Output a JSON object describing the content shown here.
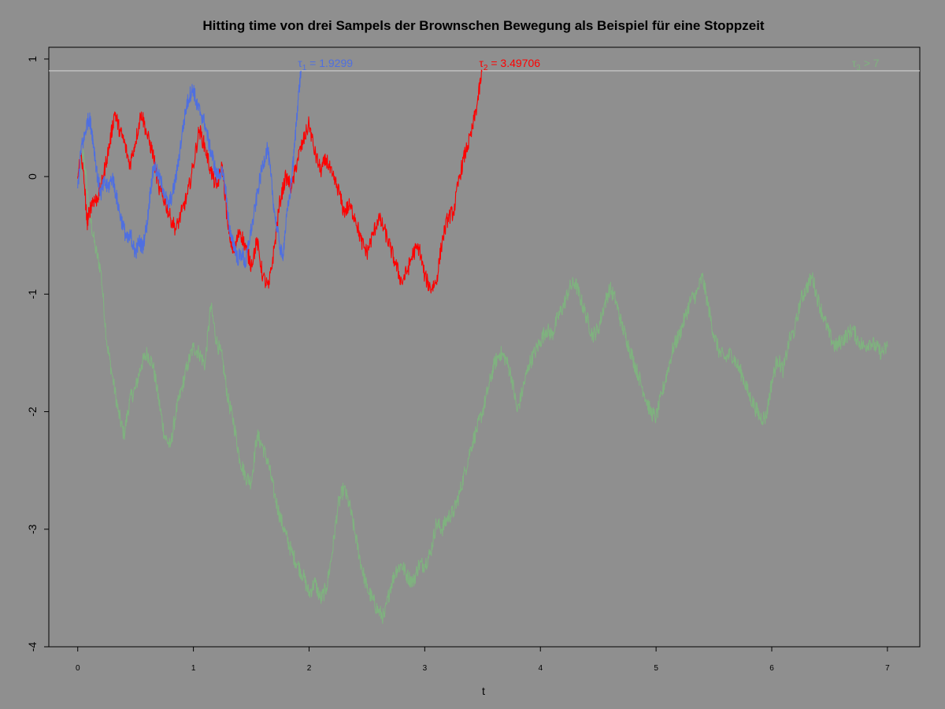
{
  "chart_data": {
    "type": "line",
    "title": "Hitting time von drei Sampels der Brownschen Bewegung als Beispiel für eine Stoppzeit",
    "xlabel": "t",
    "ylabel": "",
    "xlim": [
      -0.25,
      7.28
    ],
    "ylim": [
      -4.0,
      1.1
    ],
    "x_ticks": [
      0,
      1,
      2,
      3,
      4,
      5,
      6,
      7
    ],
    "x_tick_labels": [
      "0",
      "1",
      "2",
      "3",
      "4",
      "5",
      "6",
      "7"
    ],
    "y_ticks": [
      1,
      0,
      -1,
      -2,
      -3,
      -4
    ],
    "y_tick_labels": [
      "1",
      "0",
      "-1",
      "-2",
      "-3",
      "-4"
    ],
    "barrier": {
      "y": 0.9,
      "color": "#c8c8c8"
    },
    "grid": false,
    "background": "#8f8f8f",
    "series": [
      {
        "color": "#4f6fe0",
        "annotation": {
          "symbol": "τ",
          "sub": "1",
          "text": " = 1.9299",
          "x": 1.9299
        },
        "x": [
          0.0,
          0.03,
          0.05,
          0.08,
          0.1,
          0.12,
          0.14,
          0.17,
          0.2,
          0.23,
          0.26,
          0.3,
          0.33,
          0.36,
          0.4,
          0.43,
          0.46,
          0.48,
          0.5,
          0.53,
          0.56,
          0.6,
          0.63,
          0.66,
          0.7,
          0.74,
          0.78,
          0.82,
          0.86,
          0.9,
          0.94,
          0.97,
          1.0,
          1.03,
          1.06,
          1.1,
          1.14,
          1.17,
          1.2,
          1.24,
          1.28,
          1.3,
          1.33,
          1.36,
          1.38,
          1.42,
          1.45,
          1.48,
          1.52,
          1.56,
          1.6,
          1.64,
          1.67,
          1.7,
          1.74,
          1.77,
          1.8,
          1.84,
          1.87,
          1.9,
          1.9299
        ],
        "values": [
          -0.1,
          0.25,
          0.3,
          0.45,
          0.5,
          0.4,
          0.25,
          0.0,
          -0.15,
          -0.05,
          -0.1,
          0.0,
          -0.15,
          -0.3,
          -0.45,
          -0.55,
          -0.5,
          -0.6,
          -0.65,
          -0.55,
          -0.6,
          -0.4,
          -0.1,
          0.1,
          0.0,
          -0.1,
          -0.25,
          -0.15,
          0.05,
          0.35,
          0.6,
          0.7,
          0.75,
          0.6,
          0.55,
          0.45,
          0.25,
          0.15,
          0.0,
          0.05,
          -0.1,
          -0.35,
          -0.55,
          -0.6,
          -0.7,
          -0.65,
          -0.75,
          -0.55,
          -0.35,
          -0.1,
          0.1,
          0.25,
          0.0,
          -0.3,
          -0.55,
          -0.7,
          -0.4,
          -0.1,
          0.2,
          0.6,
          0.9
        ]
      },
      {
        "color": "#ff0000",
        "annotation": {
          "symbol": "τ",
          "sub": "2",
          "text": " = 3.49706",
          "x": 3.49706
        },
        "x": [
          0.0,
          0.03,
          0.06,
          0.08,
          0.1,
          0.13,
          0.16,
          0.2,
          0.24,
          0.28,
          0.32,
          0.36,
          0.4,
          0.45,
          0.5,
          0.55,
          0.6,
          0.65,
          0.7,
          0.75,
          0.8,
          0.85,
          0.9,
          0.95,
          1.0,
          1.05,
          1.1,
          1.15,
          1.2,
          1.25,
          1.3,
          1.35,
          1.4,
          1.45,
          1.5,
          1.55,
          1.6,
          1.65,
          1.7,
          1.75,
          1.8,
          1.85,
          1.9,
          1.95,
          2.0,
          2.05,
          2.1,
          2.15,
          2.2,
          2.25,
          2.3,
          2.35,
          2.4,
          2.45,
          2.5,
          2.55,
          2.6,
          2.65,
          2.7,
          2.75,
          2.8,
          2.85,
          2.9,
          2.95,
          3.0,
          3.05,
          3.1,
          3.15,
          3.2,
          3.25,
          3.3,
          3.35,
          3.4,
          3.45,
          3.49706
        ],
        "values": [
          0.0,
          0.2,
          -0.1,
          -0.4,
          -0.3,
          -0.2,
          -0.2,
          -0.1,
          0.1,
          0.3,
          0.55,
          0.4,
          0.3,
          0.1,
          0.3,
          0.55,
          0.35,
          0.2,
          -0.1,
          -0.2,
          -0.35,
          -0.45,
          -0.3,
          -0.15,
          0.1,
          0.4,
          0.25,
          0.05,
          -0.1,
          0.1,
          -0.45,
          -0.65,
          -0.45,
          -0.6,
          -0.75,
          -0.55,
          -0.85,
          -0.95,
          -0.6,
          -0.2,
          0.0,
          -0.1,
          0.15,
          0.3,
          0.45,
          0.2,
          0.05,
          0.15,
          0.0,
          -0.1,
          -0.3,
          -0.25,
          -0.35,
          -0.55,
          -0.65,
          -0.5,
          -0.35,
          -0.45,
          -0.6,
          -0.75,
          -0.9,
          -0.8,
          -0.65,
          -0.6,
          -0.85,
          -0.95,
          -0.9,
          -0.55,
          -0.35,
          -0.3,
          0.0,
          0.2,
          0.35,
          0.6,
          0.9
        ]
      },
      {
        "color": "#7fb27f",
        "annotation": {
          "symbol": "τ",
          "sub": "3",
          "text": " > 7",
          "x": 6.72
        },
        "x": [
          0.0,
          0.05,
          0.1,
          0.15,
          0.2,
          0.25,
          0.3,
          0.35,
          0.4,
          0.45,
          0.5,
          0.55,
          0.6,
          0.65,
          0.7,
          0.75,
          0.8,
          0.85,
          0.9,
          0.95,
          1.0,
          1.05,
          1.1,
          1.15,
          1.2,
          1.25,
          1.3,
          1.35,
          1.4,
          1.45,
          1.5,
          1.55,
          1.6,
          1.65,
          1.7,
          1.75,
          1.8,
          1.85,
          1.9,
          1.95,
          2.0,
          2.05,
          2.1,
          2.15,
          2.2,
          2.25,
          2.3,
          2.35,
          2.4,
          2.45,
          2.5,
          2.55,
          2.6,
          2.65,
          2.7,
          2.75,
          2.8,
          2.85,
          2.9,
          2.95,
          3.0,
          3.05,
          3.1,
          3.15,
          3.2,
          3.25,
          3.3,
          3.35,
          3.4,
          3.45,
          3.5,
          3.55,
          3.6,
          3.65,
          3.7,
          3.75,
          3.8,
          3.85,
          3.9,
          3.95,
          4.0,
          4.05,
          4.1,
          4.15,
          4.2,
          4.25,
          4.3,
          4.35,
          4.4,
          4.45,
          4.5,
          4.55,
          4.6,
          4.65,
          4.7,
          4.75,
          4.8,
          4.85,
          4.9,
          4.95,
          5.0,
          5.05,
          5.1,
          5.15,
          5.2,
          5.25,
          5.3,
          5.35,
          5.4,
          5.45,
          5.5,
          5.55,
          5.6,
          5.65,
          5.7,
          5.75,
          5.8,
          5.85,
          5.9,
          5.95,
          6.0,
          6.05,
          6.1,
          6.15,
          6.2,
          6.25,
          6.3,
          6.35,
          6.4,
          6.45,
          6.5,
          6.55,
          6.6,
          6.65,
          6.7,
          6.75,
          6.8,
          6.85,
          6.9,
          6.95,
          7.0
        ],
        "values": [
          0.0,
          0.2,
          -0.3,
          -0.6,
          -0.8,
          -1.4,
          -1.7,
          -2.0,
          -2.2,
          -1.9,
          -1.8,
          -1.6,
          -1.5,
          -1.6,
          -1.9,
          -2.2,
          -2.3,
          -2.0,
          -1.8,
          -1.6,
          -1.45,
          -1.5,
          -1.6,
          -1.1,
          -1.4,
          -1.55,
          -1.9,
          -2.1,
          -2.4,
          -2.55,
          -2.6,
          -2.2,
          -2.3,
          -2.45,
          -2.7,
          -2.9,
          -3.05,
          -3.2,
          -3.3,
          -3.4,
          -3.55,
          -3.45,
          -3.6,
          -3.5,
          -3.2,
          -2.8,
          -2.65,
          -2.8,
          -3.05,
          -3.3,
          -3.5,
          -3.6,
          -3.7,
          -3.75,
          -3.5,
          -3.35,
          -3.3,
          -3.4,
          -3.45,
          -3.3,
          -3.3,
          -3.2,
          -2.95,
          -3.0,
          -2.9,
          -2.85,
          -2.7,
          -2.5,
          -2.3,
          -2.15,
          -2.0,
          -1.8,
          -1.6,
          -1.5,
          -1.55,
          -1.7,
          -2.0,
          -1.8,
          -1.6,
          -1.5,
          -1.4,
          -1.3,
          -1.35,
          -1.2,
          -1.1,
          -0.95,
          -0.9,
          -1.05,
          -1.2,
          -1.35,
          -1.3,
          -1.1,
          -0.95,
          -1.05,
          -1.25,
          -1.4,
          -1.55,
          -1.7,
          -1.85,
          -2.0,
          -2.05,
          -1.85,
          -1.65,
          -1.45,
          -1.35,
          -1.2,
          -1.05,
          -1.0,
          -0.85,
          -1.1,
          -1.35,
          -1.5,
          -1.55,
          -1.5,
          -1.6,
          -1.7,
          -1.85,
          -1.95,
          -2.05,
          -2.05,
          -1.75,
          -1.55,
          -1.65,
          -1.4,
          -1.3,
          -1.05,
          -0.95,
          -0.85,
          -1.05,
          -1.2,
          -1.35,
          -1.45,
          -1.4,
          -1.35,
          -1.3,
          -1.4,
          -1.45,
          -1.4,
          -1.45,
          -1.5,
          -1.45
        ]
      }
    ]
  }
}
